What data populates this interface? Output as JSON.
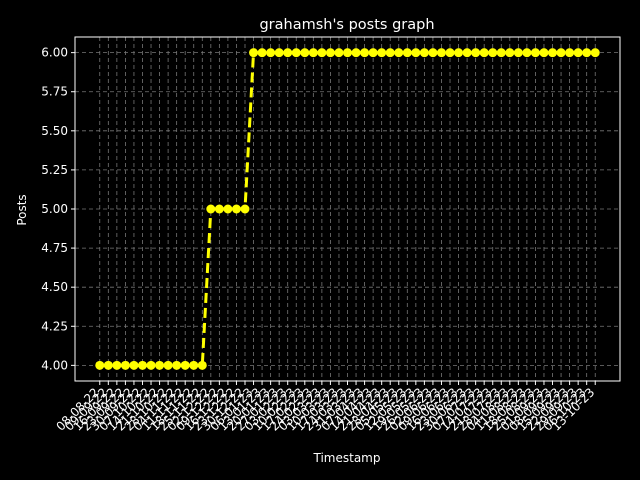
{
  "chart_data": {
    "type": "line",
    "title": "grahamsh's posts graph",
    "x_label": "Timestamp",
    "y_label": "Posts",
    "categories": [
      "08-08-22",
      "09-09-22",
      "16-09-22",
      "23-09-22",
      "30-09-22",
      "07-10-22",
      "14-10-22",
      "21-10-22",
      "28-10-22",
      "04-11-22",
      "11-11-22",
      "18-11-22",
      "25-11-22",
      "02-12-22",
      "09-12-22",
      "16-12-22",
      "23-12-22",
      "30-12-22",
      "06-01-23",
      "13-01-23",
      "20-01-23",
      "27-01-23",
      "03-02-23",
      "10-02-23",
      "17-02-23",
      "24-02-23",
      "03-03-23",
      "10-03-23",
      "17-03-23",
      "24-03-23",
      "31-03-23",
      "07-04-23",
      "14-04-23",
      "21-04-23",
      "28-04-23",
      "05-05-23",
      "12-05-23",
      "19-05-23",
      "26-05-23",
      "02-06-23",
      "09-06-23",
      "16-06-23",
      "23-06-23",
      "30-06-23",
      "07-07-23",
      "14-07-23",
      "21-07-23",
      "28-07-23",
      "04-08-23",
      "11-08-23",
      "18-08-23",
      "25-08-23",
      "01-09-23",
      "08-09-23",
      "15-09-23",
      "22-09-23",
      "29-09-23",
      "06-10-23",
      "13-10-23"
    ],
    "values": [
      4,
      4,
      4,
      4,
      4,
      4,
      4,
      4,
      4,
      4,
      4,
      4,
      4,
      5,
      5,
      5,
      5,
      5,
      6,
      6,
      6,
      6,
      6,
      6,
      6,
      6,
      6,
      6,
      6,
      6,
      6,
      6,
      6,
      6,
      6,
      6,
      6,
      6,
      6,
      6,
      6,
      6,
      6,
      6,
      6,
      6,
      6,
      6,
      6,
      6,
      6,
      6,
      6,
      6,
      6,
      6,
      6,
      6,
      6
    ],
    "color": "#ffff00",
    "ylim": [
      3.9,
      6.1
    ],
    "yticks": [
      {
        "value": 4,
        "label": "4.00"
      },
      {
        "value": 4.25,
        "label": "4.25"
      },
      {
        "value": 4.5,
        "label": "4.50"
      },
      {
        "value": 4.75,
        "label": "4.75"
      },
      {
        "value": 5,
        "label": "5.00"
      },
      {
        "value": 5.25,
        "label": "5.25"
      },
      {
        "value": 5.5,
        "label": "5.50"
      },
      {
        "value": 5.75,
        "label": "5.75"
      },
      {
        "value": 6,
        "label": "6.00"
      }
    ],
    "grid": true
  }
}
